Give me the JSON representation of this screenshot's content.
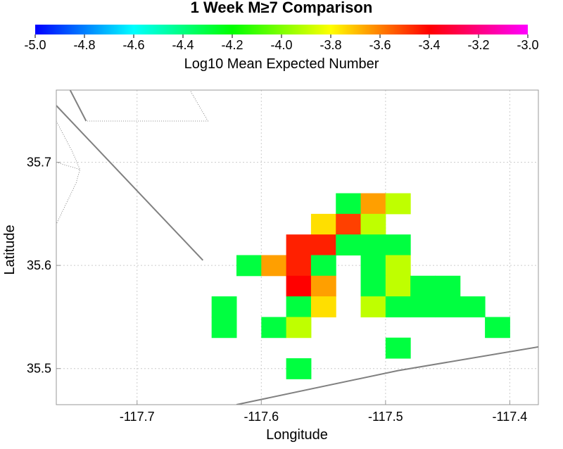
{
  "chart_data": {
    "type": "heatmap",
    "title": "1 Week M≥7 Comparison",
    "xlabel": "Longitude",
    "ylabel": "Latitude",
    "xlim": [
      -117.765,
      -117.377
    ],
    "ylim": [
      35.465,
      35.77
    ],
    "x_ticks": [
      -117.7,
      -117.6,
      -117.5,
      -117.4
    ],
    "x_tick_labels": [
      "-117.7",
      "-117.6",
      "-117.5",
      "-117.4"
    ],
    "y_ticks": [
      35.5,
      35.6,
      35.7
    ],
    "y_tick_labels": [
      "35.5",
      "35.6",
      "35.7"
    ],
    "grid": true,
    "colorbar": {
      "label": "Log10 Mean Expected Number",
      "range": [
        -5.0,
        -3.0
      ],
      "ticks": [
        -5.0,
        -4.8,
        -4.6,
        -4.4,
        -4.2,
        -4.0,
        -3.8,
        -3.6,
        -3.4,
        -3.2,
        -3.0
      ],
      "tick_labels": [
        "-5.0",
        "-4.8",
        "-4.6",
        "-4.4",
        "-4.2",
        "-4.0",
        "-3.8",
        "-3.6",
        "-3.4",
        "-3.2",
        "-3.0"
      ],
      "stops": [
        "#0000ff",
        "#00ffff",
        "#00ff00",
        "#ffff00",
        "#ff0000",
        "#ff00ff"
      ]
    },
    "cell_size": [
      0.02,
      0.02
    ],
    "cells": [
      {
        "lon": -117.53,
        "lat": 35.66,
        "value": -4.3
      },
      {
        "lon": -117.51,
        "lat": 35.66,
        "value": -3.65
      },
      {
        "lon": -117.49,
        "lat": 35.66,
        "value": -3.9
      },
      {
        "lon": -117.55,
        "lat": 35.64,
        "value": -3.75
      },
      {
        "lon": -117.53,
        "lat": 35.64,
        "value": -3.5
      },
      {
        "lon": -117.51,
        "lat": 35.64,
        "value": -3.9
      },
      {
        "lon": -117.57,
        "lat": 35.62,
        "value": -3.45
      },
      {
        "lon": -117.55,
        "lat": 35.62,
        "value": -3.45
      },
      {
        "lon": -117.53,
        "lat": 35.62,
        "value": -4.3
      },
      {
        "lon": -117.51,
        "lat": 35.62,
        "value": -4.3
      },
      {
        "lon": -117.49,
        "lat": 35.62,
        "value": -4.3
      },
      {
        "lon": -117.61,
        "lat": 35.6,
        "value": -4.3
      },
      {
        "lon": -117.59,
        "lat": 35.6,
        "value": -3.65
      },
      {
        "lon": -117.57,
        "lat": 35.6,
        "value": -3.45
      },
      {
        "lon": -117.55,
        "lat": 35.6,
        "value": -4.3
      },
      {
        "lon": -117.51,
        "lat": 35.6,
        "value": -4.3
      },
      {
        "lon": -117.49,
        "lat": 35.6,
        "value": -3.9
      },
      {
        "lon": -117.57,
        "lat": 35.58,
        "value": -3.4
      },
      {
        "lon": -117.55,
        "lat": 35.58,
        "value": -3.65
      },
      {
        "lon": -117.51,
        "lat": 35.58,
        "value": -4.3
      },
      {
        "lon": -117.49,
        "lat": 35.58,
        "value": -3.9
      },
      {
        "lon": -117.47,
        "lat": 35.58,
        "value": -4.3
      },
      {
        "lon": -117.45,
        "lat": 35.58,
        "value": -4.3
      },
      {
        "lon": -117.63,
        "lat": 35.56,
        "value": -4.3
      },
      {
        "lon": -117.57,
        "lat": 35.56,
        "value": -4.3
      },
      {
        "lon": -117.55,
        "lat": 35.56,
        "value": -3.75
      },
      {
        "lon": -117.51,
        "lat": 35.56,
        "value": -3.9
      },
      {
        "lon": -117.49,
        "lat": 35.56,
        "value": -4.3
      },
      {
        "lon": -117.47,
        "lat": 35.56,
        "value": -4.3
      },
      {
        "lon": -117.45,
        "lat": 35.56,
        "value": -4.3
      },
      {
        "lon": -117.43,
        "lat": 35.56,
        "value": -4.3
      },
      {
        "lon": -117.63,
        "lat": 35.54,
        "value": -4.3
      },
      {
        "lon": -117.59,
        "lat": 35.54,
        "value": -4.3
      },
      {
        "lon": -117.57,
        "lat": 35.54,
        "value": -3.9
      },
      {
        "lon": -117.41,
        "lat": 35.54,
        "value": -4.3
      },
      {
        "lon": -117.49,
        "lat": 35.52,
        "value": -4.3
      },
      {
        "lon": -117.57,
        "lat": 35.5,
        "value": -4.3
      }
    ],
    "faults": [
      {
        "style": "solid",
        "points": [
          [
            -117.765,
            35.755
          ],
          [
            -117.647,
            35.605
          ]
        ]
      },
      {
        "style": "solid",
        "points": [
          [
            -117.756,
            35.775
          ],
          [
            -117.741,
            35.74
          ]
        ]
      },
      {
        "style": "solid",
        "points": [
          [
            -117.62,
            35.465
          ],
          [
            -117.49,
            35.498
          ],
          [
            -117.377,
            35.521
          ]
        ]
      }
    ],
    "boundaries": [
      {
        "style": "dotted",
        "points": [
          [
            -117.74,
            35.74
          ],
          [
            -117.643,
            35.74
          ],
          [
            -117.667,
            35.79
          ]
        ]
      },
      {
        "style": "dotted",
        "points": [
          [
            -117.765,
            35.7
          ],
          [
            -117.746,
            35.693
          ],
          [
            -117.749,
            35.68
          ],
          [
            -117.765,
            35.64
          ]
        ]
      },
      {
        "style": "dotted",
        "points": [
          [
            -117.765,
            35.74
          ],
          [
            -117.752,
            35.71
          ],
          [
            -117.746,
            35.693
          ]
        ]
      }
    ]
  }
}
